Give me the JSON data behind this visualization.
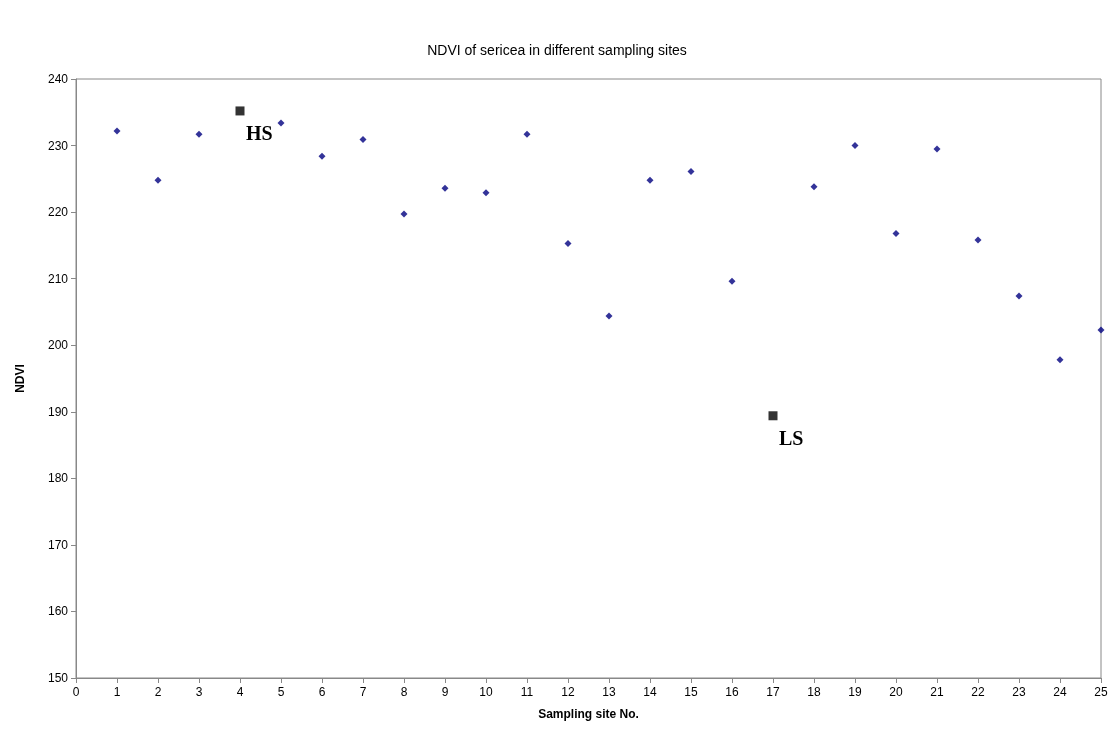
{
  "chart_data": {
    "type": "scatter",
    "title": "NDVI of sericea in different sampling sites",
    "xlabel": "Sampling site No.",
    "ylabel": "NDVI",
    "series": [
      {
        "color": "#000080",
        "marker": "diamond",
        "x": [
          1,
          2,
          3,
          5,
          6,
          7,
          8,
          9,
          10,
          11,
          12,
          13,
          14,
          15,
          16,
          18,
          19,
          20,
          21,
          22,
          23,
          24,
          25
        ],
        "values": [
          232.2,
          224.8,
          231.7,
          233.4,
          228.4,
          230.9,
          219.7,
          223.6,
          222.9,
          231.7,
          215.3,
          204.4,
          224.8,
          226.1,
          209.6,
          223.8,
          230.0,
          216.8,
          229.5,
          215.8,
          207.4,
          197.8,
          202.3
        ]
      },
      {
        "color": "#000000",
        "marker": "square",
        "x": [
          4,
          17
        ],
        "values": [
          235.2,
          189.4
        ]
      }
    ],
    "annotations": [
      {
        "text": "HS",
        "x": 4,
        "y": 235.2
      },
      {
        "text": "LS",
        "x": 17,
        "y": 189.4
      }
    ],
    "xlim": [
      0,
      25
    ],
    "xticks": [
      0,
      1,
      2,
      3,
      4,
      5,
      6,
      7,
      8,
      9,
      10,
      11,
      12,
      13,
      14,
      15,
      16,
      17,
      18,
      19,
      20,
      21,
      22,
      23,
      24,
      25
    ],
    "ylim": [
      150,
      240
    ],
    "yticks": [
      150,
      160,
      170,
      180,
      190,
      200,
      210,
      220,
      230,
      240
    ],
    "grid": false
  }
}
